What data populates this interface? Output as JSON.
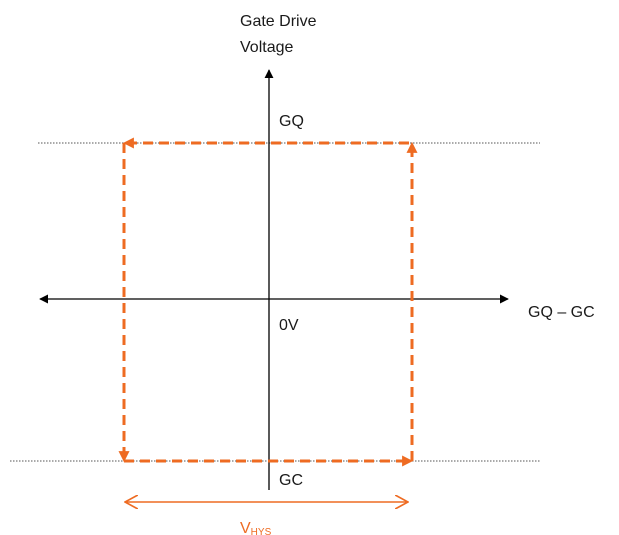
{
  "diagram": {
    "y_axis_label_line1": "Gate Drive",
    "y_axis_label_line2": "Voltage",
    "x_axis_label": "GQ – GC",
    "level_high": "GQ",
    "level_low": "GC",
    "origin_label": "0V",
    "hysteresis_label_main": "V",
    "hysteresis_label_sub": "HYS",
    "colors": {
      "axis": "#000000",
      "hysteresis": "#ee6b22",
      "reference_line": "#555555"
    }
  }
}
